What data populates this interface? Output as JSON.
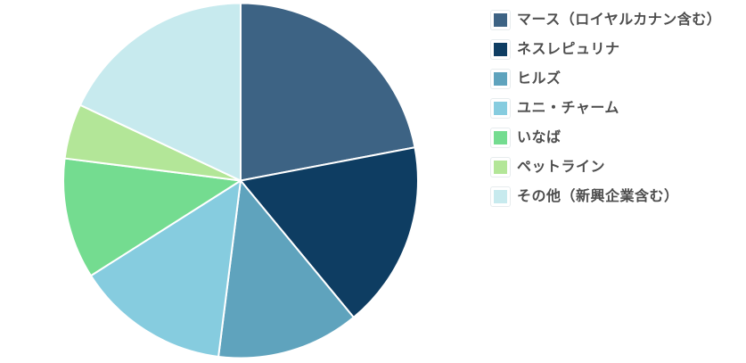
{
  "chart_data": {
    "type": "pie",
    "title": "",
    "legend_position": "right",
    "start_angle": "12-o-clock",
    "direction": "clockwise",
    "value_unit": "percent (estimated from slice angles)",
    "slice_border_color": "#ffffff",
    "legend_text_color": "#4d4d4d",
    "series": [
      {
        "label": "マース（ロイヤルカナン含む）",
        "value": 22,
        "color": "#3d6384"
      },
      {
        "label": "ネスレピュリナ",
        "value": 17,
        "color": "#0e3d62"
      },
      {
        "label": "ヒルズ",
        "value": 13,
        "color": "#5fa3bd"
      },
      {
        "label": "ユニ・チャーム",
        "value": 14,
        "color": "#86ccdf"
      },
      {
        "label": "いなば",
        "value": 11,
        "color": "#74dc90"
      },
      {
        "label": "ペットライン",
        "value": 5,
        "color": "#b3e698"
      },
      {
        "label": "その他（新興企業含む）",
        "value": 18,
        "color": "#c7eaee"
      }
    ]
  }
}
